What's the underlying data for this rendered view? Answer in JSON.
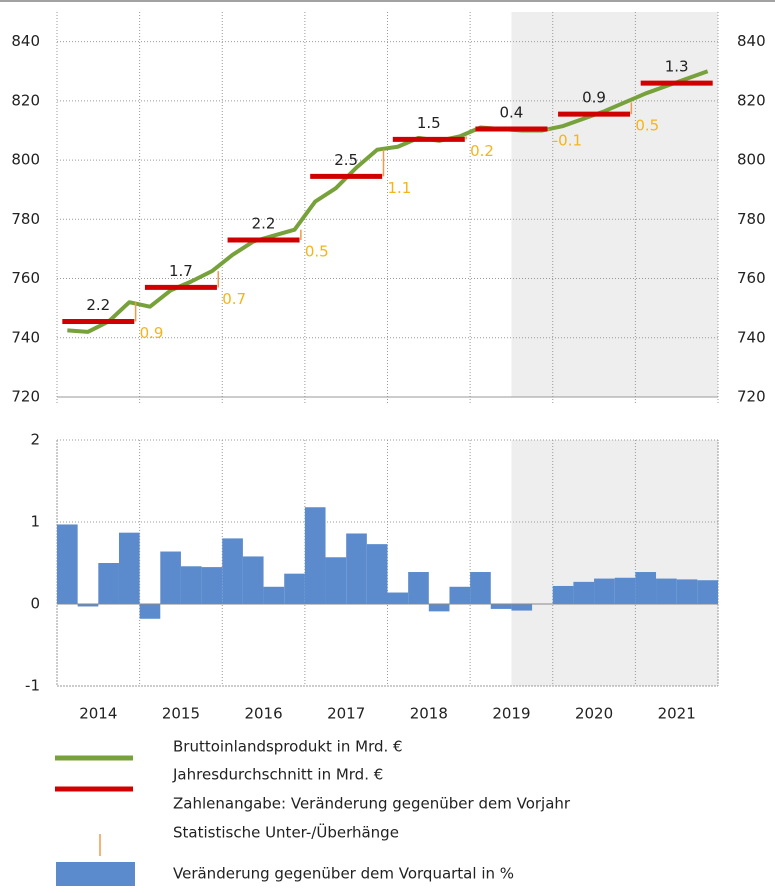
{
  "chart_data": [
    {
      "type": "line",
      "categories": [
        "2014",
        "2015",
        "2016",
        "2017",
        "2018",
        "2019",
        "2020",
        "2021"
      ],
      "ylim": [
        720,
        850
      ],
      "yticks": [
        720,
        740,
        760,
        780,
        800,
        820,
        840
      ],
      "grid": true,
      "annotation": "Zahlenangabe: Veränderung gegenüber dem Vorjahr",
      "series": [
        {
          "name": "Bruttoinlandsprodukt in Mrd. €",
          "color": "#77a13a",
          "values": [
            [
              742.5,
              742,
              745.5,
              752
            ],
            [
              750.5,
              756,
              759,
              762.5
            ],
            [
              768,
              772.5,
              774.5,
              776.5
            ],
            [
              786,
              790.5,
              797.5,
              803.5
            ],
            [
              804.5,
              807.5,
              806.5,
              808
            ],
            [
              811,
              810.5,
              810,
              810
            ],
            [
              811.5,
              814,
              816.5,
              819.5
            ],
            [
              822.5,
              825,
              827.5,
              830
            ]
          ]
        },
        {
          "name": "Jahresdurchschnitt in Mrd. €",
          "color": "#d00000",
          "values": [
            745.5,
            757,
            773,
            794.5,
            807,
            810.5,
            815.5,
            826
          ],
          "labels": [
            2.2,
            1.7,
            2.2,
            2.5,
            1.5,
            0.4,
            0.9,
            1.3
          ]
        },
        {
          "name": "Statistische Unter-/Überhänge",
          "color": "#f09a4a",
          "label_color": "#f5b51a",
          "values": [
            0.9,
            0.7,
            0.5,
            1.1,
            0.2,
            -0.1,
            0.5,
            null
          ]
        }
      ]
    },
    {
      "type": "bar",
      "categories": [
        "2014",
        "2015",
        "2016",
        "2017",
        "2018",
        "2019",
        "2020",
        "2021"
      ],
      "ylim": [
        -1,
        2
      ],
      "yticks": [
        -1,
        0,
        1,
        2
      ],
      "grid": true,
      "series": [
        {
          "name": "Veränderung gegenüber dem Vorquartal in %",
          "color": "#5b8bcc",
          "values": [
            [
              0.97,
              -0.03,
              0.5,
              0.87
            ],
            [
              -0.18,
              0.64,
              0.46,
              0.45
            ],
            [
              0.8,
              0.58,
              0.21,
              0.37
            ],
            [
              1.18,
              0.57,
              0.86,
              0.73
            ],
            [
              0.14,
              0.39,
              -0.09,
              0.21
            ],
            [
              0.39,
              -0.06,
              -0.08,
              0
            ],
            [
              0.22,
              0.27,
              0.31,
              0.32
            ],
            [
              0.39,
              0.31,
              0.3,
              0.29
            ]
          ]
        }
      ]
    }
  ]
}
